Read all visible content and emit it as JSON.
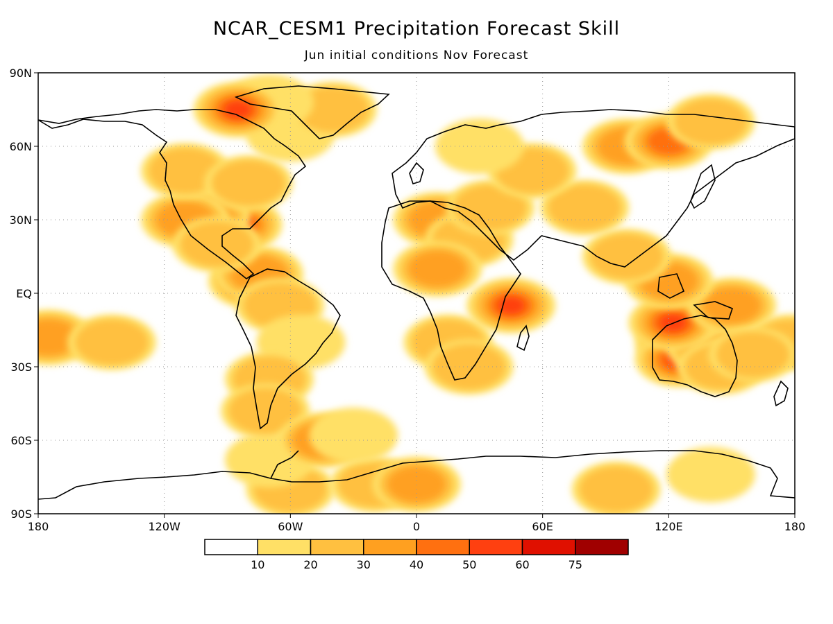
{
  "title": "NCAR_CESM1 Precipitation Forecast Skill",
  "subtitle": "Jun initial conditions   Nov Forecast",
  "lat_labels": [
    "90N",
    "60N",
    "30N",
    "EQ",
    "30S",
    "60S",
    "90S"
  ],
  "lon_labels": [
    "180",
    "120W",
    "60W",
    "0",
    "60E",
    "120E",
    "180"
  ],
  "legend": {
    "thresholds": [
      "10",
      "20",
      "30",
      "40",
      "50",
      "60",
      "75"
    ],
    "colors": [
      "#ffffff",
      "#ffe066",
      "#ffc040",
      "#ffa020",
      "#ff7010",
      "#ff4010",
      "#e01000",
      "#a00000"
    ]
  },
  "skill_regions": [
    {
      "lon": -60,
      "lat": -80,
      "lvl": 2
    },
    {
      "lon": -20,
      "lat": -78,
      "lvl": 2
    },
    {
      "lon": 0,
      "lat": -78,
      "lvl": 3
    },
    {
      "lon": 95,
      "lat": -80,
      "lvl": 2
    },
    {
      "lon": 140,
      "lat": -74,
      "lvl": 1
    },
    {
      "lon": -70,
      "lat": -68,
      "lvl": 1
    },
    {
      "lon": 125,
      "lat": -20,
      "lvl": 4
    },
    {
      "lon": 125,
      "lat": -27,
      "lvl": 5
    },
    {
      "lon": 140,
      "lat": -22,
      "lvl": 3
    },
    {
      "lon": 145,
      "lat": -30,
      "lvl": 2
    },
    {
      "lon": 130,
      "lat": -8,
      "lvl": 5
    },
    {
      "lon": 122,
      "lat": -12,
      "lvl": 5
    },
    {
      "lon": 150,
      "lat": -5,
      "lvl": 3
    },
    {
      "lon": 120,
      "lat": 5,
      "lvl": 3
    },
    {
      "lon": 100,
      "lat": 15,
      "lvl": 2
    },
    {
      "lon": -78,
      "lat": 5,
      "lvl": 4
    },
    {
      "lon": -75,
      "lat": 8,
      "lvl": 3
    },
    {
      "lon": -65,
      "lat": -5,
      "lvl": 2
    },
    {
      "lon": -55,
      "lat": -20,
      "lvl": 1
    },
    {
      "lon": -70,
      "lat": -35,
      "lvl": 2
    },
    {
      "lon": -72,
      "lat": -48,
      "lvl": 2
    },
    {
      "lon": -85,
      "lat": 28,
      "lvl": 5
    },
    {
      "lon": -100,
      "lat": 32,
      "lvl": 3
    },
    {
      "lon": -110,
      "lat": 30,
      "lvl": 3
    },
    {
      "lon": -95,
      "lat": 20,
      "lvl": 2
    },
    {
      "lon": -110,
      "lat": 50,
      "lvl": 2
    },
    {
      "lon": -80,
      "lat": 45,
      "lvl": 2
    },
    {
      "lon": -60,
      "lat": 65,
      "lvl": 1
    },
    {
      "lon": -40,
      "lat": 75,
      "lvl": 2
    },
    {
      "lon": -70,
      "lat": 78,
      "lvl": 1
    },
    {
      "lon": -85,
      "lat": 75,
      "lvl": 5
    },
    {
      "lon": 10,
      "lat": 30,
      "lvl": 3
    },
    {
      "lon": 25,
      "lat": 22,
      "lvl": 2
    },
    {
      "lon": 35,
      "lat": 35,
      "lvl": 2
    },
    {
      "lon": 15,
      "lat": -20,
      "lvl": 2
    },
    {
      "lon": 25,
      "lat": -30,
      "lvl": 2
    },
    {
      "lon": 45,
      "lat": -5,
      "lvl": 5
    },
    {
      "lon": 10,
      "lat": 10,
      "lvl": 3
    },
    {
      "lon": 100,
      "lat": 60,
      "lvl": 3
    },
    {
      "lon": 120,
      "lat": 62,
      "lvl": 4
    },
    {
      "lon": 140,
      "lat": 70,
      "lvl": 2
    },
    {
      "lon": 80,
      "lat": 35,
      "lvl": 2
    },
    {
      "lon": -175,
      "lat": -18,
      "lvl": 3
    },
    {
      "lon": -145,
      "lat": -20,
      "lvl": 2
    },
    {
      "lon": 178,
      "lat": -20,
      "lvl": 2
    },
    {
      "lon": 160,
      "lat": -25,
      "lvl": 2
    },
    {
      "lon": 55,
      "lat": 50,
      "lvl": 2
    },
    {
      "lon": 30,
      "lat": 60,
      "lvl": 1
    },
    {
      "lon": -45,
      "lat": -60,
      "lvl": 3
    },
    {
      "lon": -30,
      "lat": -58,
      "lvl": 1
    }
  ]
}
